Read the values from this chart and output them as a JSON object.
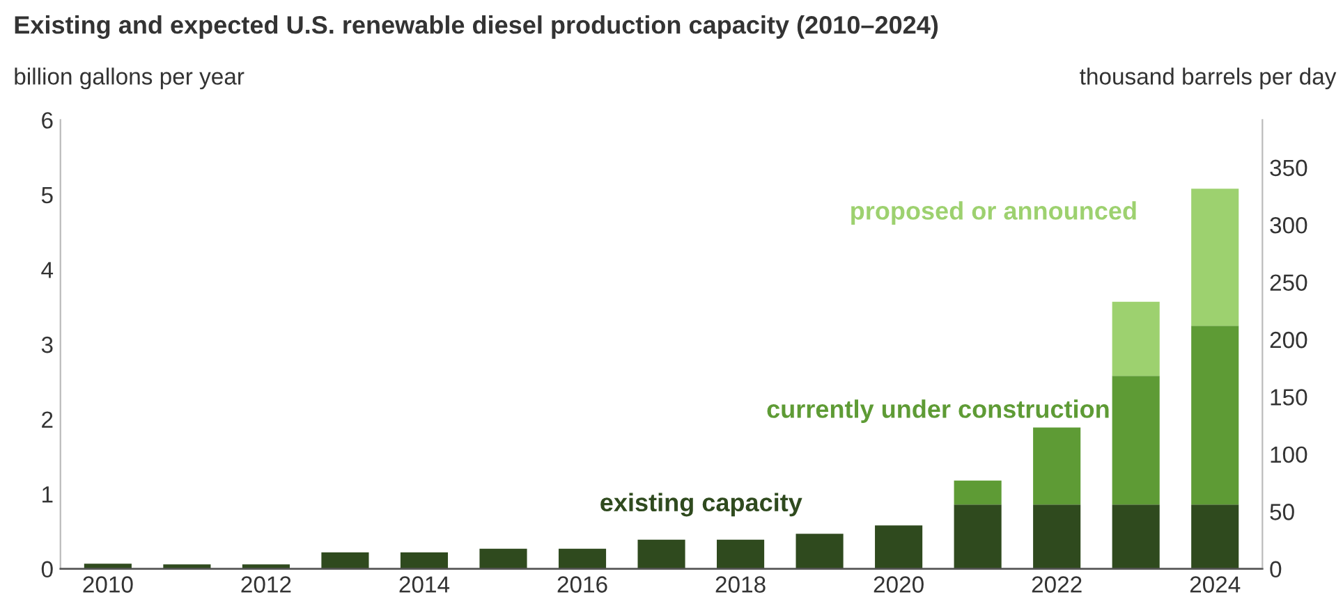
{
  "chart_data": {
    "type": "bar",
    "stacked": true,
    "title": "Existing and expected U.S. renewable diesel production capacity (2010–2024)",
    "ylabel": "billion gallons per year",
    "y2label": "thousand barrels per day",
    "categories": [
      "2010",
      null,
      "2012",
      null,
      "2014",
      null,
      "2016",
      null,
      "2018",
      null,
      "2020",
      null,
      "2022",
      null,
      "2024"
    ],
    "series": [
      {
        "name": "existing capacity",
        "color": "#2f4a1e",
        "values": [
          0.07,
          0.06,
          0.06,
          0.22,
          0.22,
          0.27,
          0.27,
          0.39,
          0.39,
          0.47,
          0.58,
          0.86,
          0.86,
          0.86,
          0.86
        ]
      },
      {
        "name": "currently under construction",
        "color": "#5e9b35",
        "values": [
          null,
          null,
          null,
          null,
          null,
          null,
          null,
          null,
          null,
          null,
          null,
          0.32,
          1.03,
          1.72,
          2.39
        ]
      },
      {
        "name": "proposed or announced",
        "color": "#9dd16f",
        "values": [
          null,
          null,
          null,
          null,
          null,
          null,
          null,
          null,
          null,
          null,
          null,
          null,
          null,
          0.99,
          1.83
        ]
      }
    ],
    "ylim": [
      0,
      6
    ],
    "yticks": [
      0,
      1,
      2,
      3,
      4,
      5,
      6
    ],
    "y2lim": [
      0,
      391.5
    ],
    "y2ticks": [
      0,
      50,
      100,
      150,
      200,
      250,
      300,
      350
    ],
    "grid": false,
    "legend": false
  }
}
